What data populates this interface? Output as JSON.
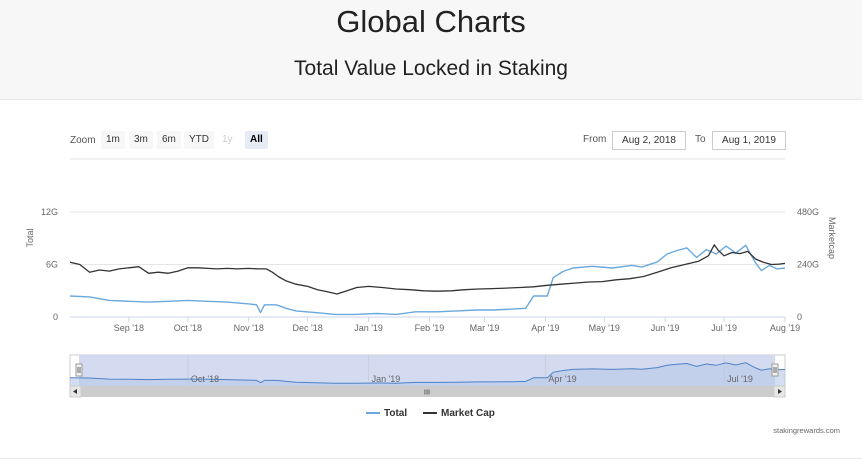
{
  "page": {
    "title": "Global Charts",
    "subtitle": "Total Value Locked in Staking",
    "credit": "stakingrewards.com"
  },
  "zoom": {
    "label": "Zoom",
    "buttons": [
      {
        "label": "1m",
        "state": "normal"
      },
      {
        "label": "3m",
        "state": "normal"
      },
      {
        "label": "6m",
        "state": "normal"
      },
      {
        "label": "YTD",
        "state": "normal"
      },
      {
        "label": "1y",
        "state": "disabled"
      },
      {
        "label": "All",
        "state": "active"
      }
    ]
  },
  "range": {
    "from_label": "From",
    "from_value": "Aug 2, 2018",
    "to_label": "To",
    "to_value": "Aug 1, 2019"
  },
  "legend": [
    {
      "name": "Total",
      "color": "#6aa9dd"
    },
    {
      "name": "Market Cap",
      "color": "#333333"
    }
  ],
  "navigator": {
    "labels": [
      "Oct '18",
      "Jan '19",
      "Apr '19",
      "Jul '19"
    ],
    "scrollbar_grip": "III"
  },
  "chart_data": {
    "type": "line",
    "x_axis": {
      "start": "2018-08-02",
      "end": "2019-08-01",
      "tick_labels": [
        "Sep '18",
        "Oct '18",
        "Nov '18",
        "Dec '18",
        "Jan '19",
        "Feb '19",
        "Mar '19",
        "Apr '19",
        "May '19",
        "Jun '19",
        "Jul '19",
        "Aug '19"
      ]
    },
    "y_left": {
      "title": "Total",
      "ticks": [
        "0",
        "6G",
        "12G"
      ],
      "min": 0,
      "max": 12
    },
    "y_right": {
      "title": "Marketcap",
      "ticks": [
        "0",
        "240G",
        "480G"
      ],
      "min": 0,
      "max": 480
    },
    "grid": true,
    "legend_position": "bottom-center",
    "series": [
      {
        "name": "Total",
        "unit": "G",
        "axis": "left",
        "color": "#6aa9dd",
        "points": [
          [
            "2018-08-02",
            2.4
          ],
          [
            "2018-08-12",
            2.3
          ],
          [
            "2018-08-22",
            1.9
          ],
          [
            "2018-09-01",
            1.8
          ],
          [
            "2018-09-11",
            1.7
          ],
          [
            "2018-09-21",
            1.8
          ],
          [
            "2018-10-01",
            1.9
          ],
          [
            "2018-10-11",
            1.8
          ],
          [
            "2018-10-21",
            1.7
          ],
          [
            "2018-11-01",
            1.5
          ],
          [
            "2018-11-05",
            1.4
          ],
          [
            "2018-11-07",
            0.5
          ],
          [
            "2018-11-09",
            1.4
          ],
          [
            "2018-11-15",
            1.4
          ],
          [
            "2018-11-20",
            1.0
          ],
          [
            "2018-11-25",
            0.7
          ],
          [
            "2018-12-05",
            0.5
          ],
          [
            "2018-12-15",
            0.3
          ],
          [
            "2018-12-25",
            0.3
          ],
          [
            "2019-01-05",
            0.4
          ],
          [
            "2019-01-15",
            0.3
          ],
          [
            "2019-01-25",
            0.6
          ],
          [
            "2019-02-05",
            0.6
          ],
          [
            "2019-02-15",
            0.7
          ],
          [
            "2019-02-25",
            0.8
          ],
          [
            "2019-03-05",
            0.8
          ],
          [
            "2019-03-15",
            0.9
          ],
          [
            "2019-03-22",
            1.0
          ],
          [
            "2019-03-26",
            2.4
          ],
          [
            "2019-04-02",
            2.4
          ],
          [
            "2019-04-05",
            4.5
          ],
          [
            "2019-04-10",
            5.2
          ],
          [
            "2019-04-15",
            5.6
          ],
          [
            "2019-04-25",
            5.8
          ],
          [
            "2019-05-05",
            5.6
          ],
          [
            "2019-05-15",
            5.9
          ],
          [
            "2019-05-20",
            5.7
          ],
          [
            "2019-05-28",
            6.3
          ],
          [
            "2019-06-02",
            7.2
          ],
          [
            "2019-06-07",
            7.6
          ],
          [
            "2019-06-12",
            7.9
          ],
          [
            "2019-06-17",
            6.8
          ],
          [
            "2019-06-22",
            7.7
          ],
          [
            "2019-06-27",
            7.2
          ],
          [
            "2019-07-02",
            8.1
          ],
          [
            "2019-07-07",
            7.3
          ],
          [
            "2019-07-12",
            8.2
          ],
          [
            "2019-07-17",
            6.2
          ],
          [
            "2019-07-20",
            5.3
          ],
          [
            "2019-07-24",
            5.9
          ],
          [
            "2019-07-28",
            5.5
          ],
          [
            "2019-08-01",
            5.6
          ]
        ]
      },
      {
        "name": "Market Cap",
        "unit": "G",
        "axis": "right",
        "color": "#333333",
        "points": [
          [
            "2018-08-02",
            250
          ],
          [
            "2018-08-07",
            240
          ],
          [
            "2018-08-12",
            205
          ],
          [
            "2018-08-17",
            215
          ],
          [
            "2018-08-22",
            210
          ],
          [
            "2018-08-27",
            220
          ],
          [
            "2018-09-01",
            225
          ],
          [
            "2018-09-06",
            230
          ],
          [
            "2018-09-11",
            200
          ],
          [
            "2018-09-16",
            205
          ],
          [
            "2018-09-21",
            200
          ],
          [
            "2018-09-26",
            210
          ],
          [
            "2018-10-01",
            225
          ],
          [
            "2018-10-06",
            225
          ],
          [
            "2018-10-11",
            222
          ],
          [
            "2018-10-16",
            220
          ],
          [
            "2018-10-21",
            222
          ],
          [
            "2018-10-26",
            220
          ],
          [
            "2018-11-01",
            222
          ],
          [
            "2018-11-06",
            220
          ],
          [
            "2018-11-10",
            220
          ],
          [
            "2018-11-13",
            205
          ],
          [
            "2018-11-16",
            185
          ],
          [
            "2018-11-20",
            165
          ],
          [
            "2018-11-25",
            150
          ],
          [
            "2018-12-01",
            140
          ],
          [
            "2018-12-06",
            125
          ],
          [
            "2018-12-11",
            115
          ],
          [
            "2018-12-16",
            105
          ],
          [
            "2018-12-21",
            120
          ],
          [
            "2018-12-26",
            135
          ],
          [
            "2019-01-01",
            140
          ],
          [
            "2019-01-08",
            135
          ],
          [
            "2019-01-15",
            128
          ],
          [
            "2019-01-22",
            125
          ],
          [
            "2019-01-29",
            120
          ],
          [
            "2019-02-05",
            118
          ],
          [
            "2019-02-12",
            120
          ],
          [
            "2019-02-19",
            125
          ],
          [
            "2019-02-26",
            128
          ],
          [
            "2019-03-05",
            130
          ],
          [
            "2019-03-12",
            132
          ],
          [
            "2019-03-19",
            135
          ],
          [
            "2019-03-26",
            138
          ],
          [
            "2019-04-02",
            145
          ],
          [
            "2019-04-09",
            150
          ],
          [
            "2019-04-16",
            155
          ],
          [
            "2019-04-23",
            160
          ],
          [
            "2019-04-30",
            162
          ],
          [
            "2019-05-07",
            170
          ],
          [
            "2019-05-14",
            175
          ],
          [
            "2019-05-21",
            185
          ],
          [
            "2019-05-28",
            205
          ],
          [
            "2019-06-04",
            225
          ],
          [
            "2019-06-11",
            240
          ],
          [
            "2019-06-18",
            255
          ],
          [
            "2019-06-23",
            280
          ],
          [
            "2019-06-26",
            330
          ],
          [
            "2019-06-28",
            305
          ],
          [
            "2019-07-01",
            280
          ],
          [
            "2019-07-05",
            295
          ],
          [
            "2019-07-09",
            290
          ],
          [
            "2019-07-13",
            300
          ],
          [
            "2019-07-17",
            265
          ],
          [
            "2019-07-21",
            250
          ],
          [
            "2019-07-25",
            240
          ],
          [
            "2019-07-29",
            242
          ],
          [
            "2019-08-01",
            245
          ]
        ]
      }
    ]
  }
}
